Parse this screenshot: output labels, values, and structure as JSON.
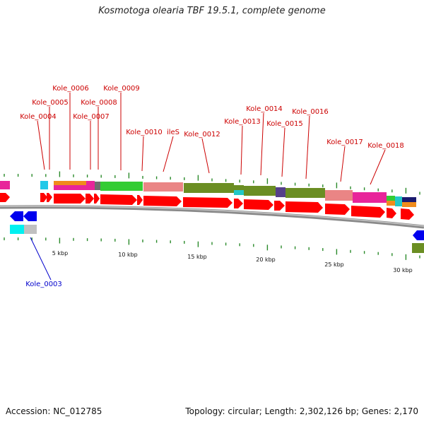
{
  "title": "Kosmotoga olearia TBF 19.5.1, complete genome",
  "accession_label": "Accession: NC_012785",
  "summary_label": "Topology: circular; Length: 2,302,126 bp; Genes: 2,170",
  "colors": {
    "forward_gene": "#ff0000",
    "reverse_gene": "#0000ee",
    "forward_label": "#cc0000",
    "reverse_label": "#0000cc",
    "backbone": "#8a8a8a",
    "tick": "#2a8a2a"
  },
  "scale_labels": [
    "5 kbp",
    "10 kbp",
    "15 kbp",
    "20 kbp",
    "25 kbp",
    "30 kbp"
  ],
  "forward_labels": [
    "Kole_0006",
    "Kole_0009",
    "Kole_0005",
    "Kole_0008",
    "Kole_0004",
    "Kole_0007",
    "Kole_0014",
    "Kole_0016",
    "Kole_0013",
    "Kole_0015",
    "Kole_0010",
    "ileS",
    "Kole_0012",
    "Kole_0017",
    "Kole_0018"
  ],
  "reverse_labels": [
    "Kole_0003"
  ]
}
